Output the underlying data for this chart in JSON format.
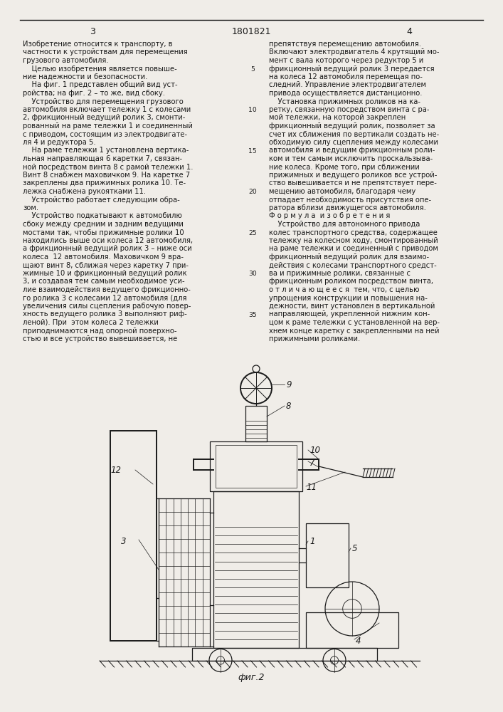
{
  "page_number_left": "3",
  "patent_number": "1801821",
  "page_number_right": "4",
  "bg": "#f0ede8",
  "tc": "#1a1a1a",
  "figure_label": "фиг.2",
  "left_col_lines": [
    "Изобретение относится к транспорту, в",
    "частности к устройствам для перемещения",
    "грузового автомобиля.",
    "    Целью изобретения является повыше-",
    "ние надежности и безопасности.",
    "    На фиг. 1 представлен общий вид уст-",
    "ройства; на фиг. 2 – то же, вид сбоку.",
    "    Устройство для перемещения грузового",
    "автомобиля включает тележку 1 с колесами",
    "2, фрикционный ведущий ролик 3, смонти-",
    "рованный на раме тележки 1 и соединенный",
    "с приводом, состоящим из электродвигате-",
    "ля 4 и редуктора 5.",
    "    На раме тележки 1 установлена вертика-",
    "льная направляющая 6 каретки 7, связан-",
    "ной посредством винта 8 с рамой тележки 1.",
    "Винт 8 снабжен маховичком 9. На каретке 7",
    "закреплены два прижимных ролика 10. Те-",
    "лежка снабжена рукоятками 11.",
    "    Устройство работает следующим обра-",
    "зом.",
    "    Устройство подкатывают к автомобилю",
    "сбоку между средним и задним ведущими",
    "мостами так, чтобы прижимные ролики 10",
    "находились выше оси колеса 12 автомобиля,",
    "а фрикционный ведущий ролик 3 – ниже оси",
    "колеса  12 автомобиля. Маховичком 9 вра-",
    "щают винт 8, сближая через каретку 7 при-",
    "жимные 10 и фрикционный ведущий ролик",
    "3, и создавая тем самым необходимое уси-",
    "лие взаимодействия ведущего фрикционно-",
    "го ролика 3 с колесами 12 автомобиля (для",
    "увеличения силы сцепления рабочую повер-",
    "хность ведущего ролика 3 выполняют риф-",
    "леной). При  этом колеса 2 тележки",
    "приподнимаются над опорной поверхно-",
    "стью и все устройство вывешивается, не"
  ],
  "right_col_lines": [
    "препятствуя перемещению автомобиля.",
    "Включают электродвигатель 4 крутящий мо-",
    "мент с вала которого через редуктор 5 и",
    "фрикционный ведущий ролик 3 передается",
    "на колеса 12 автомобиля перемещая по-",
    "следний. Управление электродвигателем",
    "привода осуществляется дистанционно.",
    "    Установка прижимных роликов на ка-",
    "ретку, связанную посредством винта с ра-",
    "мой тележки, на которой закреплен",
    "фрикционный ведущий ролик, позволяет за",
    "счет их сближения по вертикали создать не-",
    "обходимую силу сцепления между колесами",
    "автомобиля и ведущим фрикционным роли-",
    "ком и тем самым исключить проскальзыва-",
    "ние колеса. Кроме того, при сближении",
    "прижимных и ведущего роликов все устрой-",
    "ство вывешивается и не препятствует пере-",
    "мещению автомобиля, благодаря чему",
    "отпадает необходимость присутствия опе-",
    "ратора вблизи движущегося автомобиля.",
    "Ф о р м у л а  и з о б р е т е н и я",
    "    Устройство для автономного привода",
    "колес транспортного средства, содержащее",
    "тележку на колесном ходу, смонтированный",
    "на раме тележки и соединенный с приводом",
    "фрикционный ведущий ролик для взаимо-",
    "действия с колесами транспортного средст-",
    "ва и прижимные ролики, связанные с",
    "фрикционным роликом посредством винта,",
    "о т л и ч а ю щ е е с я  тем, что, с целью",
    "упрощения конструкции и повышения на-",
    "дежности, винт установлен в вертикальной",
    "направляющей, укрепленной нижним кон-",
    "цом к раме тележки с установленной на вер-",
    "хнем конце каретку с закрепленными на ней",
    "прижимными роликами."
  ],
  "line_nums": [
    5,
    10,
    15,
    20,
    25,
    30,
    35
  ]
}
